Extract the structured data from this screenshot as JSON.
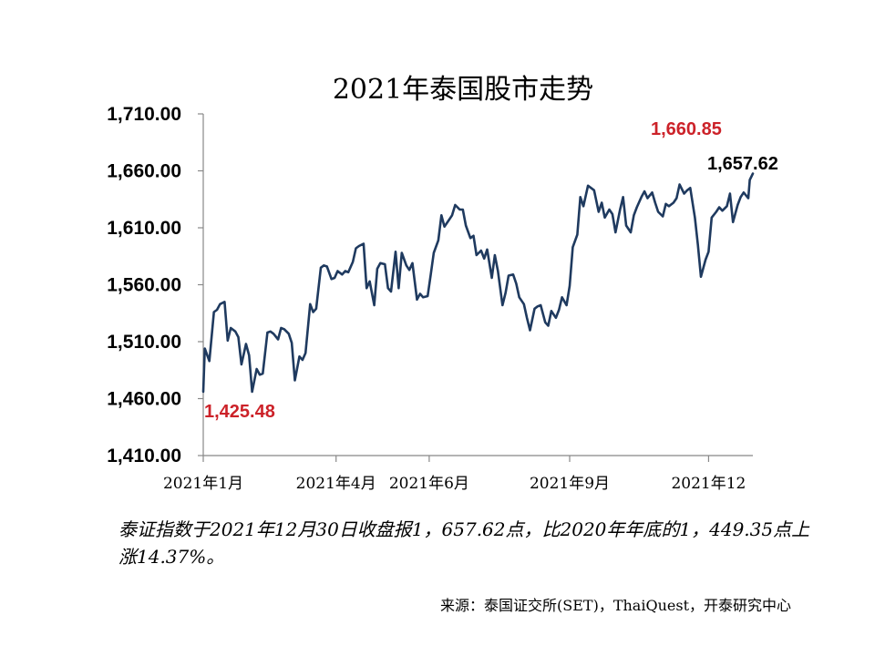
{
  "chart_data": {
    "type": "line",
    "title": "2021年泰国股市走势",
    "xlabel": "",
    "ylabel": "",
    "ylim": [
      1410,
      1710
    ],
    "yticks": [
      1410,
      1460,
      1510,
      1560,
      1610,
      1660,
      1710
    ],
    "ytick_labels": [
      "1,410.00",
      "1,460.00",
      "1,510.00",
      "1,560.00",
      "1,610.00",
      "1,660.00",
      "1,710.00"
    ],
    "xticks": [
      {
        "label": "2021年1月",
        "date": "2021-01-04"
      },
      {
        "label": "2021年4月",
        "date": "2021-04-01"
      },
      {
        "label": "2021年6月",
        "date": "2021-06-01"
      },
      {
        "label": "2021年9月",
        "date": "2021-09-01"
      },
      {
        "label": "2021年12",
        "date": "2021-12-01"
      }
    ],
    "xrange": [
      "2021-01-04",
      "2021-12-30"
    ],
    "line_color": "#1f3a5f",
    "grid": false,
    "series": [
      {
        "points": [
          [
            "2021-01-04",
            1466
          ],
          [
            "2021-01-05",
            1504
          ],
          [
            "2021-01-08",
            1493
          ],
          [
            "2021-01-11",
            1536
          ],
          [
            "2021-01-13",
            1538
          ],
          [
            "2021-01-15",
            1543
          ],
          [
            "2021-01-18",
            1545
          ],
          [
            "2021-01-20",
            1511
          ],
          [
            "2021-01-22",
            1522
          ],
          [
            "2021-01-25",
            1519
          ],
          [
            "2021-01-27",
            1514
          ],
          [
            "2021-01-29",
            1490
          ],
          [
            "2021-02-01",
            1508
          ],
          [
            "2021-02-03",
            1498
          ],
          [
            "2021-02-05",
            1466
          ],
          [
            "2021-02-08",
            1486
          ],
          [
            "2021-02-10",
            1481
          ],
          [
            "2021-02-12",
            1482
          ],
          [
            "2021-02-15",
            1518
          ],
          [
            "2021-02-17",
            1519
          ],
          [
            "2021-02-19",
            1517
          ],
          [
            "2021-02-22",
            1512
          ],
          [
            "2021-02-24",
            1522
          ],
          [
            "2021-02-26",
            1521
          ],
          [
            "2021-03-01",
            1517
          ],
          [
            "2021-03-03",
            1509
          ],
          [
            "2021-03-05",
            1476
          ],
          [
            "2021-03-08",
            1497
          ],
          [
            "2021-03-10",
            1494
          ],
          [
            "2021-03-12",
            1500
          ],
          [
            "2021-03-15",
            1543
          ],
          [
            "2021-03-17",
            1536
          ],
          [
            "2021-03-19",
            1539
          ],
          [
            "2021-03-22",
            1575
          ],
          [
            "2021-03-24",
            1577
          ],
          [
            "2021-03-26",
            1576
          ],
          [
            "2021-03-29",
            1565
          ],
          [
            "2021-03-31",
            1566
          ],
          [
            "2021-04-02",
            1572
          ],
          [
            "2021-04-05",
            1569
          ],
          [
            "2021-04-07",
            1572
          ],
          [
            "2021-04-09",
            1571
          ],
          [
            "2021-04-12",
            1580
          ],
          [
            "2021-04-14",
            1592
          ],
          [
            "2021-04-16",
            1594
          ],
          [
            "2021-04-19",
            1596
          ],
          [
            "2021-04-21",
            1557
          ],
          [
            "2021-04-23",
            1563
          ],
          [
            "2021-04-26",
            1542
          ],
          [
            "2021-04-28",
            1574
          ],
          [
            "2021-04-30",
            1579
          ],
          [
            "2021-05-03",
            1578
          ],
          [
            "2021-05-05",
            1557
          ],
          [
            "2021-05-07",
            1554
          ],
          [
            "2021-05-10",
            1589
          ],
          [
            "2021-05-12",
            1557
          ],
          [
            "2021-05-14",
            1588
          ],
          [
            "2021-05-17",
            1577
          ],
          [
            "2021-05-19",
            1573
          ],
          [
            "2021-05-21",
            1579
          ],
          [
            "2021-05-24",
            1547
          ],
          [
            "2021-05-26",
            1552
          ],
          [
            "2021-05-28",
            1549
          ],
          [
            "2021-05-31",
            1550
          ],
          [
            "2021-06-02",
            1569
          ],
          [
            "2021-06-04",
            1588
          ],
          [
            "2021-06-07",
            1599
          ],
          [
            "2021-06-09",
            1621
          ],
          [
            "2021-06-11",
            1611
          ],
          [
            "2021-06-14",
            1617
          ],
          [
            "2021-06-16",
            1621
          ],
          [
            "2021-06-18",
            1630
          ],
          [
            "2021-06-21",
            1626
          ],
          [
            "2021-06-23",
            1626
          ],
          [
            "2021-06-25",
            1612
          ],
          [
            "2021-06-28",
            1601
          ],
          [
            "2021-06-30",
            1603
          ],
          [
            "2021-07-02",
            1586
          ],
          [
            "2021-07-05",
            1590
          ],
          [
            "2021-07-07",
            1583
          ],
          [
            "2021-07-09",
            1591
          ],
          [
            "2021-07-12",
            1566
          ],
          [
            "2021-07-14",
            1586
          ],
          [
            "2021-07-16",
            1572
          ],
          [
            "2021-07-19",
            1542
          ],
          [
            "2021-07-21",
            1553
          ],
          [
            "2021-07-23",
            1568
          ],
          [
            "2021-07-26",
            1569
          ],
          [
            "2021-07-28",
            1561
          ],
          [
            "2021-07-30",
            1549
          ],
          [
            "2021-08-02",
            1543
          ],
          [
            "2021-08-04",
            1531
          ],
          [
            "2021-08-06",
            1520
          ],
          [
            "2021-08-09",
            1539
          ],
          [
            "2021-08-11",
            1541
          ],
          [
            "2021-08-13",
            1542
          ],
          [
            "2021-08-16",
            1527
          ],
          [
            "2021-08-18",
            1524
          ],
          [
            "2021-08-20",
            1537
          ],
          [
            "2021-08-23",
            1531
          ],
          [
            "2021-08-25",
            1538
          ],
          [
            "2021-08-27",
            1549
          ],
          [
            "2021-08-30",
            1542
          ],
          [
            "2021-09-01",
            1559
          ],
          [
            "2021-09-03",
            1593
          ],
          [
            "2021-09-06",
            1604
          ],
          [
            "2021-09-08",
            1637
          ],
          [
            "2021-09-10",
            1629
          ],
          [
            "2021-09-13",
            1647
          ],
          [
            "2021-09-15",
            1645
          ],
          [
            "2021-09-17",
            1643
          ],
          [
            "2021-09-20",
            1624
          ],
          [
            "2021-09-22",
            1632
          ],
          [
            "2021-09-24",
            1619
          ],
          [
            "2021-09-27",
            1626
          ],
          [
            "2021-09-29",
            1622
          ],
          [
            "2021-10-01",
            1606
          ],
          [
            "2021-10-04",
            1626
          ],
          [
            "2021-10-06",
            1637
          ],
          [
            "2021-10-08",
            1612
          ],
          [
            "2021-10-11",
            1606
          ],
          [
            "2021-10-13",
            1621
          ],
          [
            "2021-10-15",
            1628
          ],
          [
            "2021-10-18",
            1637
          ],
          [
            "2021-10-20",
            1642
          ],
          [
            "2021-10-22",
            1636
          ],
          [
            "2021-10-25",
            1641
          ],
          [
            "2021-10-27",
            1632
          ],
          [
            "2021-10-29",
            1624
          ],
          [
            "2021-11-01",
            1620
          ],
          [
            "2021-11-03",
            1631
          ],
          [
            "2021-11-05",
            1629
          ],
          [
            "2021-11-08",
            1632
          ],
          [
            "2021-11-10",
            1636
          ],
          [
            "2021-11-12",
            1648
          ],
          [
            "2021-11-15",
            1640
          ],
          [
            "2021-11-17",
            1643
          ],
          [
            "2021-11-19",
            1645
          ],
          [
            "2021-11-22",
            1619
          ],
          [
            "2021-11-24",
            1595
          ],
          [
            "2021-11-26",
            1567
          ],
          [
            "2021-11-29",
            1582
          ],
          [
            "2021-12-01",
            1589
          ],
          [
            "2021-12-03",
            1619
          ],
          [
            "2021-12-06",
            1624
          ],
          [
            "2021-12-08",
            1628
          ],
          [
            "2021-12-10",
            1625
          ],
          [
            "2021-12-13",
            1629
          ],
          [
            "2021-12-15",
            1640
          ],
          [
            "2021-12-17",
            1615
          ],
          [
            "2021-12-20",
            1630
          ],
          [
            "2021-12-22",
            1637
          ],
          [
            "2021-12-24",
            1641
          ],
          [
            "2021-12-27",
            1636
          ],
          [
            "2021-12-28",
            1652
          ],
          [
            "2021-12-30",
            1657.62
          ]
        ]
      }
    ],
    "annotations": [
      {
        "text": "1,425.48",
        "color": "#cc2229"
      },
      {
        "text": "1,660.85",
        "color": "#cc2229"
      },
      {
        "text": "1,657.62",
        "color": "#000000"
      }
    ]
  },
  "note": "泰证指数于2021年12月30日收盘报1，657.62点，比2020年年底的1，449.35点上涨14.37%。",
  "source": "来源：泰国证交所(SET)，ThaiQuest，开泰研究中心"
}
